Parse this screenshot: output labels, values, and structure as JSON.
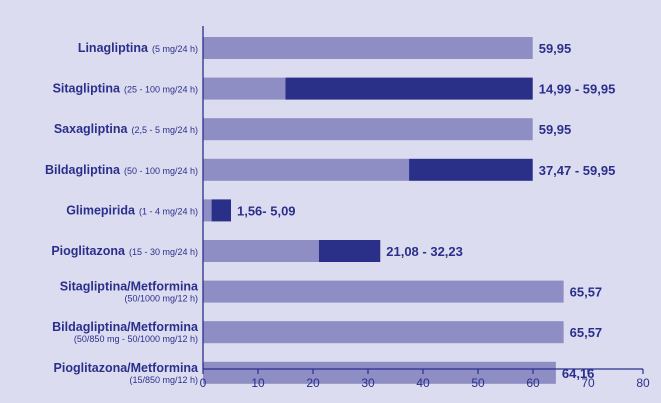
{
  "chart_data": {
    "type": "bar",
    "orientation": "horizontal",
    "title": "",
    "xlabel": "",
    "ylabel": "",
    "xlim": [
      0,
      80
    ],
    "xticks": [
      0,
      10,
      20,
      30,
      40,
      50,
      60,
      70,
      80
    ],
    "grid": false,
    "colors": {
      "base": "#8e8ec4",
      "range": "#2a2f88",
      "text": "#2b2f8c",
      "background": "#dcdcf0"
    },
    "categories": [
      {
        "name": "Linagliptina",
        "dose": "(5 mg/24 h)",
        "dose_line2": "",
        "min": 59.95,
        "max": 59.95,
        "label": "59,95"
      },
      {
        "name": "Sitagliptina",
        "dose": "(25 - 100 mg/24 h)",
        "dose_line2": "",
        "min": 14.99,
        "max": 59.95,
        "label": "14,99 - 59,95"
      },
      {
        "name": "Saxagliptina",
        "dose": "(2,5 - 5 mg/24 h)",
        "dose_line2": "",
        "min": 59.95,
        "max": 59.95,
        "label": "59,95"
      },
      {
        "name": "Bildagliptina",
        "dose": "(50 - 100 mg/24 h)",
        "dose_line2": "",
        "min": 37.47,
        "max": 59.95,
        "label": "37,47 - 59,95"
      },
      {
        "name": "Glimepirida",
        "dose": "(1 - 4 mg/24 h)",
        "dose_line2": "",
        "min": 1.56,
        "max": 5.09,
        "label": "1,56- 5,09"
      },
      {
        "name": "Pioglitazona",
        "dose": "(15 - 30 mg/24 h)",
        "dose_line2": "",
        "min": 21.08,
        "max": 32.23,
        "label": "21,08 - 32,23"
      },
      {
        "name": "Sitagliptina/Metformina",
        "dose": "",
        "dose_line2": "(50/1000 mg/12 h)",
        "min": 65.57,
        "max": 65.57,
        "label": "65,57"
      },
      {
        "name": "Bildagliptina/Metformina",
        "dose": "",
        "dose_line2": "(50/850 mg - 50/1000 mg/12 h)",
        "min": 65.57,
        "max": 65.57,
        "label": "65,57"
      },
      {
        "name": "Pioglitazona/Metformina",
        "dose": "",
        "dose_line2": "(15/850 mg/12 h)",
        "min": 64.16,
        "max": 64.16,
        "label": "64,16"
      }
    ]
  }
}
